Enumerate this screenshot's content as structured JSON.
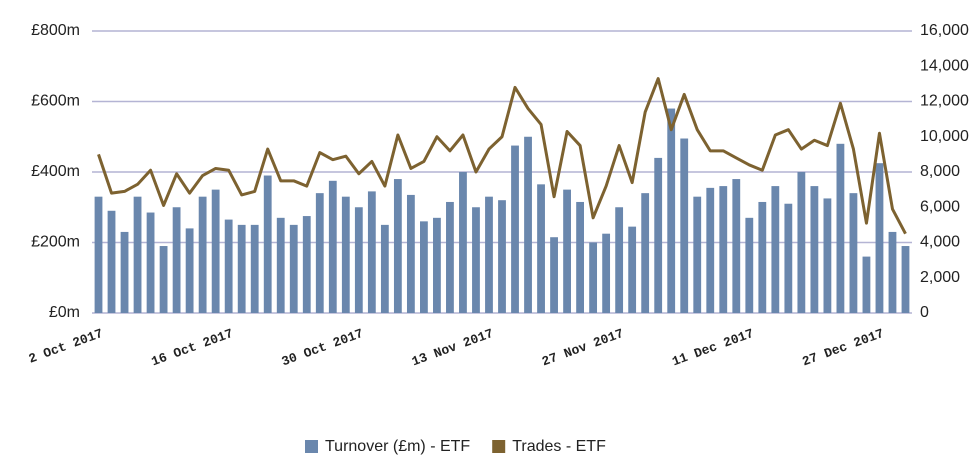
{
  "chart_data": {
    "type": "bar-line",
    "categories": [
      "2 Oct 2017",
      null,
      null,
      null,
      null,
      null,
      null,
      null,
      null,
      null,
      "16 Oct 2017",
      null,
      null,
      null,
      null,
      null,
      null,
      null,
      null,
      null,
      "30 Oct 2017",
      null,
      null,
      null,
      null,
      null,
      null,
      null,
      null,
      null,
      "13 Nov 2017",
      null,
      null,
      null,
      null,
      null,
      null,
      null,
      null,
      null,
      "27 Nov 2017",
      null,
      null,
      null,
      null,
      null,
      null,
      null,
      null,
      null,
      "11 Dec 2017",
      null,
      null,
      null,
      null,
      null,
      null,
      null,
      null,
      null,
      "27 Dec 2017",
      null,
      null
    ],
    "series": [
      {
        "name": "Turnover (£m) - ETF",
        "color": "#6a87ad",
        "type": "bar",
        "values": [
          330,
          290,
          230,
          330,
          285,
          190,
          300,
          240,
          330,
          350,
          265,
          250,
          250,
          390,
          270,
          250,
          275,
          340,
          375,
          330,
          300,
          345,
          250,
          380,
          335,
          260,
          270,
          315,
          400,
          300,
          330,
          320,
          475,
          500,
          365,
          215,
          350,
          315,
          200,
          225,
          300,
          245,
          340,
          440,
          580,
          495,
          330,
          355,
          360,
          380,
          270,
          315,
          360,
          310,
          400,
          360,
          325,
          480,
          340,
          160,
          425,
          230,
          190
        ]
      },
      {
        "name": "Trades - ETF",
        "color": "#7d6230",
        "type": "line",
        "axis": "y2",
        "values": [
          9000,
          6800,
          6900,
          7300,
          8100,
          6100,
          7900,
          6800,
          7800,
          8200,
          8100,
          6700,
          6900,
          9300,
          7500,
          7500,
          7200,
          9100,
          8700,
          8900,
          7900,
          8600,
          7200,
          10100,
          8200,
          8600,
          10000,
          9200,
          10100,
          8000,
          9300,
          10000,
          12800,
          11600,
          10700,
          6600,
          10300,
          9500,
          5400,
          7200,
          9500,
          7400,
          11400,
          13300,
          10400,
          12400,
          10400,
          9200,
          9200,
          8800,
          8400,
          8100,
          10100,
          10400,
          9300,
          9800,
          9500,
          11900,
          9300,
          5100,
          10200,
          5900,
          4500
        ]
      }
    ],
    "ylim": [
      0,
      800
    ],
    "yticks": [
      {
        "value": 0,
        "label": "£0m"
      },
      {
        "value": 200,
        "label": "£200m"
      },
      {
        "value": 400,
        "label": "£400m"
      },
      {
        "value": 600,
        "label": "£600m"
      },
      {
        "value": 800,
        "label": "£800m"
      }
    ],
    "y2lim": [
      0,
      16000
    ],
    "y2ticks": [
      0,
      {
        "value": 2000,
        "label": "2,000"
      },
      {
        "value": 4000,
        "label": "4,000"
      },
      {
        "value": 6000,
        "label": "6,000"
      },
      {
        "value": 8000,
        "label": "8,000"
      },
      {
        "value": 10000,
        "label": "10,000"
      },
      {
        "value": 12000,
        "label": "12,000"
      },
      {
        "value": 14000,
        "label": "14,000"
      },
      {
        "value": 16000,
        "label": "16,000"
      }
    ],
    "grid": true,
    "legend": "bottom"
  }
}
